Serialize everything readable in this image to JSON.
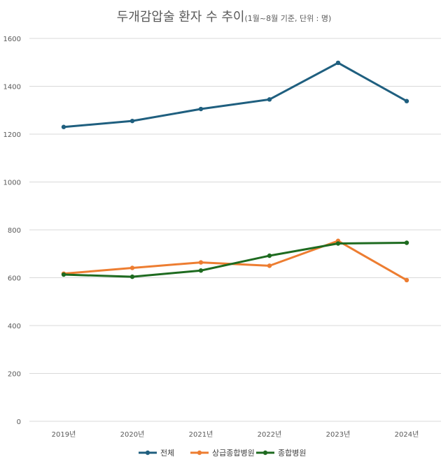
{
  "chart_data": {
    "type": "line",
    "title": "두개감압술 환자 수 추이",
    "subtitle": "(1월~8월 기준, 단위 : 명)",
    "categories": [
      "2019년",
      "2020년",
      "2021년",
      "2022년",
      "2023년",
      "2024년"
    ],
    "ylim": [
      0,
      1600
    ],
    "yticks": [
      0,
      200,
      400,
      600,
      800,
      1000,
      1200,
      1400,
      1600
    ],
    "grid": true,
    "legend_position": "bottom",
    "series": [
      {
        "name": "전체",
        "color": "#1f5f7f",
        "values": [
          1230,
          1255,
          1305,
          1345,
          1498,
          1338
        ]
      },
      {
        "name": "상급종합병원",
        "color": "#ed7d31",
        "values": [
          617,
          641,
          664,
          650,
          754,
          590
        ]
      },
      {
        "name": "종합병원",
        "color": "#1e6b20",
        "values": [
          613,
          604,
          630,
          692,
          743,
          746
        ]
      }
    ]
  }
}
